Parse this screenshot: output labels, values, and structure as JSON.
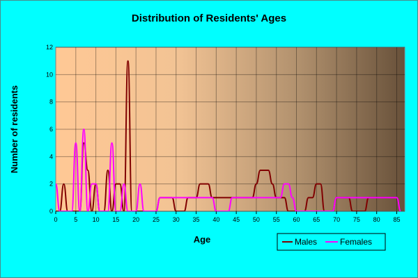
{
  "chart_data": {
    "type": "line",
    "title": "Distribution of Residents' Ages",
    "xlabel": "Age",
    "ylabel": "Number of residents",
    "xlim": [
      0,
      87
    ],
    "ylim": [
      0,
      12
    ],
    "x_ticks": [
      0,
      5,
      10,
      15,
      20,
      25,
      30,
      35,
      40,
      45,
      50,
      55,
      60,
      65,
      70,
      75,
      80,
      85
    ],
    "y_ticks": [
      0,
      2,
      4,
      6,
      8,
      10,
      12
    ],
    "grid": true,
    "legend_position": "bottom-right",
    "series": [
      {
        "name": "Males",
        "color": "#800000",
        "x": [
          0,
          1,
          2,
          3,
          4,
          5,
          6,
          7,
          8,
          9,
          10,
          11,
          12,
          13,
          14,
          15,
          16,
          17,
          18,
          19,
          20,
          21,
          22,
          23,
          24,
          25,
          26,
          27,
          28,
          29,
          30,
          31,
          32,
          33,
          34,
          35,
          36,
          37,
          38,
          39,
          40,
          41,
          42,
          43,
          44,
          45,
          46,
          47,
          48,
          49,
          50,
          51,
          52,
          53,
          54,
          55,
          56,
          57,
          58,
          59,
          60,
          61,
          62,
          63,
          64,
          65,
          66,
          67,
          68,
          69,
          70,
          71,
          72,
          73,
          74,
          75,
          76,
          77,
          78,
          79,
          80,
          81,
          82,
          83,
          84,
          85,
          86
        ],
        "values": [
          0,
          0,
          2,
          0,
          0,
          0,
          0,
          5,
          3,
          0,
          2,
          0,
          0,
          3,
          0,
          2,
          2,
          0,
          11,
          0,
          0,
          0,
          0,
          0,
          0,
          0,
          1,
          1,
          1,
          1,
          0,
          0,
          0,
          1,
          1,
          1,
          2,
          2,
          2,
          1,
          1,
          1,
          1,
          1,
          1,
          1,
          1,
          1,
          1,
          1,
          2,
          3,
          3,
          3,
          2,
          1,
          1,
          1,
          0,
          0,
          0,
          0,
          0,
          1,
          1,
          2,
          2,
          0,
          0,
          0,
          1,
          1,
          1,
          1,
          0,
          0,
          0,
          0,
          1,
          1,
          1,
          1,
          1,
          1,
          1,
          1,
          0
        ]
      },
      {
        "name": "Females",
        "color": "#ff00ff",
        "x": [
          0,
          1,
          2,
          3,
          4,
          5,
          6,
          7,
          8,
          9,
          10,
          11,
          12,
          13,
          14,
          15,
          16,
          17,
          18,
          19,
          20,
          21,
          22,
          23,
          24,
          25,
          26,
          27,
          28,
          29,
          30,
          31,
          32,
          33,
          34,
          35,
          36,
          37,
          38,
          39,
          40,
          41,
          42,
          43,
          44,
          45,
          46,
          47,
          48,
          49,
          50,
          51,
          52,
          53,
          54,
          55,
          56,
          57,
          58,
          59,
          60,
          61,
          62,
          63,
          64,
          65,
          66,
          67,
          68,
          69,
          70,
          71,
          72,
          73,
          74,
          75,
          76,
          77,
          78,
          79,
          80,
          81,
          82,
          83,
          84,
          85,
          86
        ],
        "values": [
          2,
          0,
          0,
          0,
          0,
          5,
          0,
          6,
          0,
          2,
          2,
          0,
          0,
          0,
          5,
          0,
          0,
          2,
          0,
          0,
          0,
          2,
          0,
          0,
          0,
          0,
          1,
          1,
          1,
          1,
          1,
          1,
          1,
          1,
          1,
          1,
          1,
          1,
          1,
          1,
          0,
          0,
          0,
          0,
          1,
          1,
          1,
          1,
          1,
          1,
          1,
          1,
          1,
          1,
          1,
          1,
          1,
          2,
          2,
          1,
          0,
          0,
          0,
          0,
          0,
          0,
          0,
          0,
          0,
          0,
          1,
          1,
          1,
          1,
          1,
          1,
          1,
          1,
          1,
          1,
          1,
          1,
          1,
          1,
          1,
          1,
          0
        ]
      }
    ]
  }
}
